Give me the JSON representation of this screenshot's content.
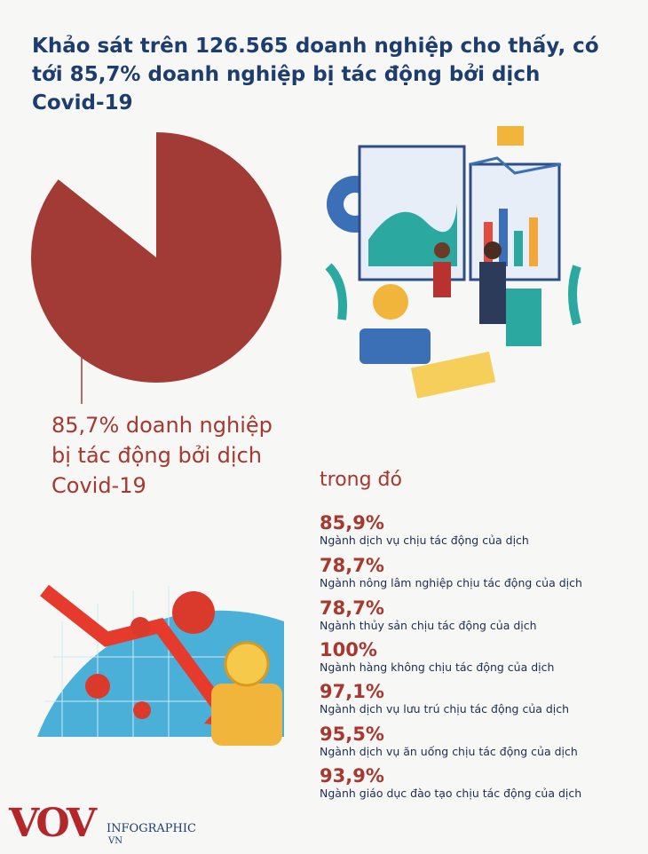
{
  "header": {
    "title": "Khảo sát trên 126.565 doanh nghiệp cho thấy, có tới 85,7% doanh nghiệp bị tác động bởi dịch Covid-19"
  },
  "chart_data": {
    "type": "pie",
    "values": [
      85.7
    ],
    "color": "#a23b36",
    "annotation": "85,7% doanh nghiệp bị tác động bởi dịch Covid-19"
  },
  "breakdown": {
    "heading": "trong đó",
    "items": [
      {
        "percent": "85,9%",
        "label": "Ngành dịch vụ chịu tác động của dịch"
      },
      {
        "percent": "78,7%",
        "label": "Ngành nông lâm nghiệp chịu tác động của dịch"
      },
      {
        "percent": "78,7%",
        "label": "Ngành thủy sản chịu tác động của dịch"
      },
      {
        "percent": "100%",
        "label": "Ngành hàng không chịu tác động của dịch"
      },
      {
        "percent": "97,1%",
        "label": "Ngành dịch vụ lưu trú chịu tác động của dịch"
      },
      {
        "percent": "95,5%",
        "label": "Ngành dịch vụ ăn uống chịu tác động của dịch"
      },
      {
        "percent": "93,9%",
        "label": "Ngành giáo dục đào tạo chịu tác động của dịch"
      }
    ]
  },
  "footer": {
    "logo": "VOV",
    "brand": "INFOGRAPHIC",
    "suffix": "VN"
  }
}
